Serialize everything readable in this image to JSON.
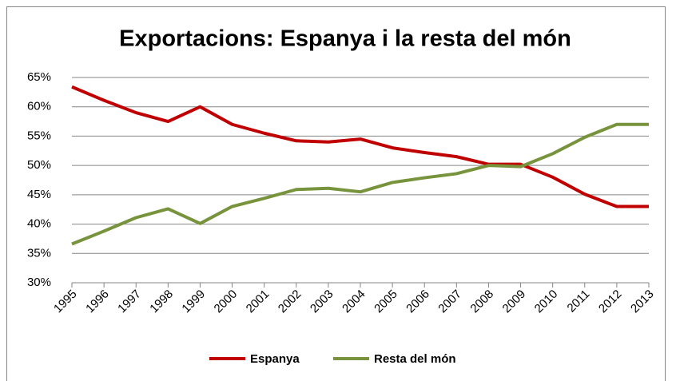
{
  "chart_data": {
    "type": "line",
    "title": "Exportacions:  Espanya i la resta del món",
    "categories": [
      "1995",
      "1996",
      "1997",
      "1998",
      "1999",
      "2000",
      "2001",
      "2002",
      "2003",
      "2004",
      "2005",
      "2006",
      "2007",
      "2008",
      "2009",
      "2010",
      "2011",
      "2012",
      "2013"
    ],
    "series": [
      {
        "name": "Espanya",
        "color": "#c00000",
        "values": [
          63.4,
          61.1,
          59,
          57.5,
          60,
          57,
          55.5,
          54.2,
          54,
          54.5,
          53,
          52.2,
          51.5,
          50.2,
          50.2,
          48,
          45.1,
          43,
          43
        ]
      },
      {
        "name": "Resta del món",
        "color": "#77933c",
        "values": [
          36.6,
          38.8,
          41.1,
          42.6,
          40.1,
          43,
          44.4,
          45.9,
          46.1,
          45.5,
          47.1,
          47.9,
          48.6,
          50,
          49.8,
          52,
          54.8,
          57,
          57
        ]
      }
    ],
    "ylim": [
      30,
      65
    ],
    "yticks": [
      {
        "value": 30,
        "label": "30%"
      },
      {
        "value": 35,
        "label": "35%"
      },
      {
        "value": 40,
        "label": "40%"
      },
      {
        "value": 45,
        "label": "45%"
      },
      {
        "value": 50,
        "label": "50%"
      },
      {
        "value": 55,
        "label": "55%"
      },
      {
        "value": 60,
        "label": "60%"
      },
      {
        "value": 65,
        "label": "65%"
      }
    ],
    "grid": true,
    "legend": "bottom"
  }
}
